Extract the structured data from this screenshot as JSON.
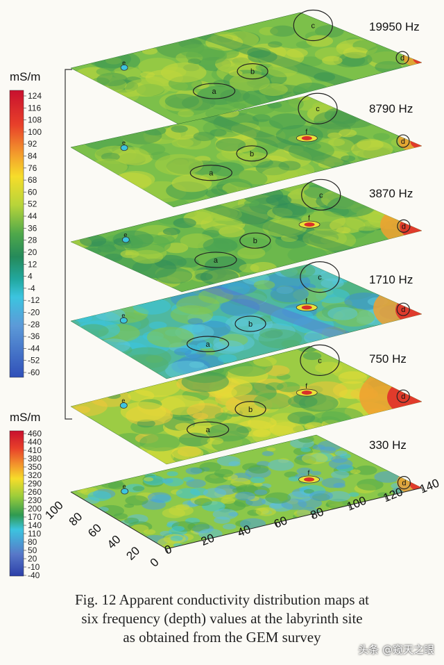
{
  "chart_data": {
    "type": "heatmap",
    "title": "",
    "panels": [
      {
        "label": "19950 Hz",
        "anomalies": [
          "a",
          "b",
          "c",
          "d",
          "e"
        ]
      },
      {
        "label": "8790 Hz",
        "anomalies": [
          "a",
          "b",
          "c",
          "d",
          "e",
          "f"
        ]
      },
      {
        "label": "3870 Hz",
        "anomalies": [
          "a",
          "b",
          "c",
          "d",
          "e",
          "f"
        ]
      },
      {
        "label": "1710 Hz",
        "anomalies": [
          "a",
          "b",
          "c",
          "d",
          "e",
          "f"
        ]
      },
      {
        "label": "750 Hz",
        "anomalies": [
          "a",
          "b",
          "c",
          "d",
          "e",
          "f"
        ]
      },
      {
        "label": "330 Hz",
        "anomalies": [
          "d",
          "e",
          "f"
        ]
      }
    ],
    "colorbars": [
      {
        "unit": "mS/m",
        "applies_to": [
          "19950 Hz",
          "8790 Hz",
          "3870 Hz",
          "1710 Hz",
          "750 Hz"
        ],
        "ticks": [
          124,
          116,
          108,
          100,
          92,
          84,
          76,
          68,
          60,
          52,
          44,
          36,
          28,
          20,
          12,
          4,
          -4,
          -12,
          -20,
          -28,
          -36,
          -44,
          -52,
          -60
        ],
        "range": [
          -60,
          124
        ]
      },
      {
        "unit": "mS/m",
        "applies_to": [
          "330 Hz"
        ],
        "ticks": [
          460,
          440,
          410,
          380,
          350,
          320,
          290,
          260,
          230,
          200,
          170,
          140,
          110,
          80,
          50,
          20,
          -10,
          -40
        ],
        "range": [
          -40,
          460
        ]
      }
    ],
    "x_axis": {
      "ticks": [
        0,
        20,
        40,
        60,
        80,
        100,
        120,
        140
      ],
      "range": [
        0,
        140
      ]
    },
    "y_axis": {
      "ticks": [
        0,
        20,
        40,
        60,
        80,
        100
      ],
      "range": [
        0,
        100
      ]
    }
  },
  "caption": {
    "line1": "Fig. 12   Apparent conductivity distribution maps at",
    "line2": "six frequency (depth) values at the labyrinth site",
    "line3": "as obtained from the GEM survey"
  },
  "watermark": "头条 @窥天之眼"
}
